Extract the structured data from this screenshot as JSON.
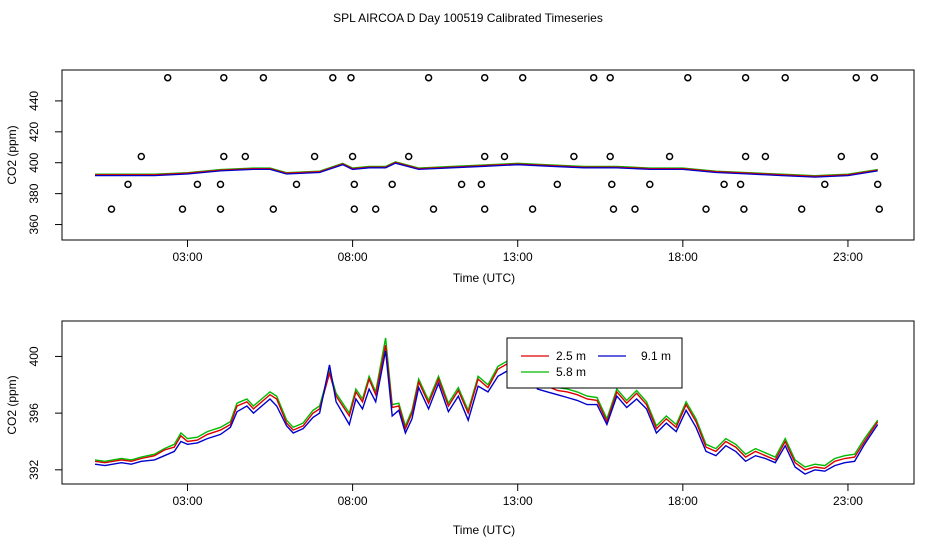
{
  "title": "SPL AIRCOA D  Day 100519  Calibrated Timeseries",
  "chart_data": [
    {
      "type": "line",
      "ylabel": "CO2 (ppm)",
      "xlabel": "Time (UTC)",
      "xlim": [
        -0.8,
        25
      ],
      "ylim": [
        350,
        460
      ],
      "xticks": [
        3,
        8,
        13,
        18,
        23
      ],
      "xtick_labels": [
        "03:00",
        "08:00",
        "13:00",
        "18:00",
        "23:00"
      ],
      "yticks": [
        360,
        380,
        400,
        420,
        440
      ],
      "ytick_labels": [
        "360",
        "380",
        "400",
        "420",
        "440"
      ],
      "grid": false,
      "colors": {
        "green": "#00bb00",
        "blue": "#0000cc",
        "red": "#dd0000",
        "points": "#000000"
      },
      "line_times": [
        0.2,
        1.0,
        2.0,
        3.0,
        4.0,
        5.0,
        5.5,
        6.0,
        7.0,
        7.7,
        8.0,
        8.5,
        9.0,
        9.3,
        10.0,
        11.0,
        12.0,
        13.0,
        14.0,
        15.0,
        16.0,
        17.0,
        18.0,
        19.0,
        20.0,
        21.0,
        22.0,
        23.0,
        23.9
      ],
      "line_values": [
        392,
        392,
        392,
        393,
        395,
        396,
        396,
        393,
        394,
        399,
        396,
        397,
        397,
        400,
        396,
        397,
        398,
        399,
        398,
        397,
        397,
        396,
        396,
        394,
        393,
        392,
        391,
        392,
        395
      ],
      "scatter": [
        {
          "x": 2.4,
          "y": 455
        },
        {
          "x": 4.1,
          "y": 455
        },
        {
          "x": 5.3,
          "y": 455
        },
        {
          "x": 7.4,
          "y": 455
        },
        {
          "x": 7.95,
          "y": 455
        },
        {
          "x": 10.3,
          "y": 455
        },
        {
          "x": 12.0,
          "y": 455
        },
        {
          "x": 13.15,
          "y": 455
        },
        {
          "x": 15.3,
          "y": 455
        },
        {
          "x": 15.8,
          "y": 455
        },
        {
          "x": 18.15,
          "y": 455
        },
        {
          "x": 19.9,
          "y": 455
        },
        {
          "x": 21.1,
          "y": 455
        },
        {
          "x": 23.25,
          "y": 455
        },
        {
          "x": 23.8,
          "y": 455
        },
        {
          "x": 1.6,
          "y": 404
        },
        {
          "x": 4.1,
          "y": 404
        },
        {
          "x": 4.75,
          "y": 404
        },
        {
          "x": 6.85,
          "y": 404
        },
        {
          "x": 8.0,
          "y": 404
        },
        {
          "x": 9.7,
          "y": 404
        },
        {
          "x": 12.0,
          "y": 404
        },
        {
          "x": 12.6,
          "y": 404
        },
        {
          "x": 14.7,
          "y": 404
        },
        {
          "x": 15.8,
          "y": 404
        },
        {
          "x": 17.6,
          "y": 404
        },
        {
          "x": 19.9,
          "y": 404
        },
        {
          "x": 20.5,
          "y": 404
        },
        {
          "x": 22.8,
          "y": 404
        },
        {
          "x": 23.8,
          "y": 404
        },
        {
          "x": 1.2,
          "y": 386
        },
        {
          "x": 3.3,
          "y": 386
        },
        {
          "x": 4.0,
          "y": 386
        },
        {
          "x": 6.3,
          "y": 386
        },
        {
          "x": 8.05,
          "y": 386
        },
        {
          "x": 9.2,
          "y": 386
        },
        {
          "x": 11.3,
          "y": 386
        },
        {
          "x": 11.9,
          "y": 386
        },
        {
          "x": 14.2,
          "y": 386
        },
        {
          "x": 15.85,
          "y": 386
        },
        {
          "x": 17.0,
          "y": 386
        },
        {
          "x": 19.25,
          "y": 386
        },
        {
          "x": 19.75,
          "y": 386
        },
        {
          "x": 22.3,
          "y": 386
        },
        {
          "x": 23.9,
          "y": 386
        },
        {
          "x": 0.7,
          "y": 370
        },
        {
          "x": 2.85,
          "y": 370
        },
        {
          "x": 4.0,
          "y": 370
        },
        {
          "x": 5.6,
          "y": 370
        },
        {
          "x": 8.05,
          "y": 370
        },
        {
          "x": 8.7,
          "y": 370
        },
        {
          "x": 10.45,
          "y": 370
        },
        {
          "x": 12.0,
          "y": 370
        },
        {
          "x": 13.45,
          "y": 370
        },
        {
          "x": 15.9,
          "y": 370
        },
        {
          "x": 16.55,
          "y": 370
        },
        {
          "x": 18.7,
          "y": 370
        },
        {
          "x": 19.85,
          "y": 370
        },
        {
          "x": 21.6,
          "y": 370
        },
        {
          "x": 23.95,
          "y": 370
        }
      ]
    },
    {
      "type": "line",
      "ylabel": "CO2 (ppm)",
      "xlabel": "Time (UTC)",
      "xlim": [
        -0.8,
        25
      ],
      "ylim": [
        391,
        402.5
      ],
      "xticks": [
        3,
        8,
        13,
        18,
        23
      ],
      "xtick_labels": [
        "03:00",
        "08:00",
        "13:00",
        "18:00",
        "23:00"
      ],
      "yticks": [
        392,
        396,
        400
      ],
      "ytick_labels": [
        "392",
        "396",
        "400"
      ],
      "grid": false,
      "legend_position": "top-center",
      "x": [
        0.2,
        0.5,
        1.0,
        1.3,
        1.6,
        2.0,
        2.3,
        2.6,
        2.8,
        3.0,
        3.3,
        3.6,
        4.0,
        4.3,
        4.5,
        4.8,
        5.0,
        5.3,
        5.5,
        5.7,
        6.0,
        6.2,
        6.5,
        6.8,
        7.0,
        7.3,
        7.5,
        7.7,
        7.9,
        8.1,
        8.3,
        8.5,
        8.7,
        9.0,
        9.2,
        9.4,
        9.6,
        9.8,
        10.0,
        10.3,
        10.6,
        10.9,
        11.2,
        11.5,
        11.8,
        12.1,
        12.4,
        12.7,
        13.0,
        13.3,
        13.6,
        13.9,
        14.2,
        14.5,
        14.8,
        15.1,
        15.4,
        15.7,
        16.0,
        16.3,
        16.6,
        16.9,
        17.2,
        17.5,
        17.8,
        18.1,
        18.4,
        18.7,
        19.0,
        19.3,
        19.6,
        19.9,
        20.2,
        20.5,
        20.8,
        21.1,
        21.4,
        21.7,
        22.0,
        22.3,
        22.6,
        22.9,
        23.2,
        23.5,
        23.9
      ],
      "series": [
        {
          "name": "2.5 m",
          "color": "#dd0000",
          "values": [
            392.6,
            392.5,
            392.7,
            392.6,
            392.8,
            393.0,
            393.4,
            393.6,
            394.4,
            394.0,
            394.1,
            394.5,
            394.8,
            395.2,
            396.5,
            396.8,
            396.3,
            396.9,
            397.3,
            397.0,
            395.3,
            394.8,
            395.1,
            396.0,
            396.3,
            398.8,
            397.2,
            396.5,
            395.8,
            397.5,
            396.8,
            398.4,
            397.3,
            400.8,
            396.4,
            396.5,
            394.9,
            396.0,
            398.2,
            396.7,
            398.4,
            396.5,
            397.6,
            396.0,
            398.4,
            397.8,
            399.1,
            399.5,
            398.9,
            399.8,
            398.1,
            397.9,
            397.6,
            397.5,
            397.3,
            397.0,
            396.9,
            395.4,
            397.5,
            396.7,
            397.4,
            396.6,
            394.9,
            395.6,
            395.0,
            396.6,
            395.4,
            393.6,
            393.3,
            394.0,
            393.6,
            392.9,
            393.3,
            393.0,
            392.7,
            394.0,
            392.5,
            392.0,
            392.2,
            392.1,
            392.6,
            392.8,
            392.9,
            394.0,
            395.4
          ]
        },
        {
          "name": "9.1 m",
          "color": "#0000cc",
          "values": [
            392.4,
            392.3,
            392.5,
            392.4,
            392.6,
            392.7,
            393.0,
            393.3,
            394.0,
            393.8,
            393.9,
            394.2,
            394.5,
            395.0,
            396.1,
            396.5,
            396.0,
            396.6,
            397.0,
            396.5,
            395.1,
            394.6,
            394.9,
            395.7,
            396.0,
            399.4,
            396.8,
            396.0,
            395.2,
            397.0,
            396.3,
            397.7,
            396.8,
            400.4,
            395.8,
            396.2,
            394.6,
            395.6,
            397.8,
            396.3,
            398.1,
            396.1,
            397.2,
            395.5,
            397.9,
            397.5,
            398.6,
            399.0,
            398.4,
            399.2,
            397.7,
            397.5,
            397.3,
            397.1,
            396.9,
            396.6,
            396.6,
            395.2,
            397.2,
            396.4,
            397.0,
            396.3,
            394.6,
            395.3,
            394.7,
            396.2,
            395.0,
            393.3,
            393.0,
            393.7,
            393.3,
            392.6,
            393.0,
            392.8,
            392.5,
            393.7,
            392.2,
            391.7,
            392.0,
            391.9,
            392.3,
            392.5,
            392.6,
            393.8,
            395.2
          ]
        },
        {
          "name": "5.8 m",
          "color": "#00bb00",
          "values": [
            392.7,
            392.6,
            392.8,
            392.7,
            392.9,
            393.1,
            393.5,
            393.8,
            394.6,
            394.2,
            394.3,
            394.7,
            395.0,
            395.4,
            396.7,
            397.0,
            396.5,
            397.1,
            397.5,
            397.2,
            395.5,
            395.0,
            395.3,
            396.2,
            396.5,
            399.0,
            397.4,
            396.7,
            396.0,
            397.7,
            397.0,
            398.6,
            397.5,
            401.3,
            396.6,
            396.7,
            395.1,
            396.2,
            398.4,
            396.9,
            398.6,
            396.7,
            397.8,
            396.2,
            398.6,
            398.0,
            399.3,
            399.7,
            399.1,
            399.5,
            398.3,
            398.1,
            397.8,
            397.7,
            397.5,
            397.2,
            397.1,
            395.6,
            397.7,
            396.9,
            397.6,
            396.8,
            395.1,
            395.8,
            395.2,
            396.8,
            395.6,
            393.8,
            393.5,
            394.2,
            393.8,
            393.1,
            393.5,
            393.2,
            392.9,
            394.2,
            392.7,
            392.2,
            392.4,
            392.3,
            392.8,
            393.0,
            393.1,
            394.2,
            395.5
          ]
        }
      ]
    }
  ]
}
